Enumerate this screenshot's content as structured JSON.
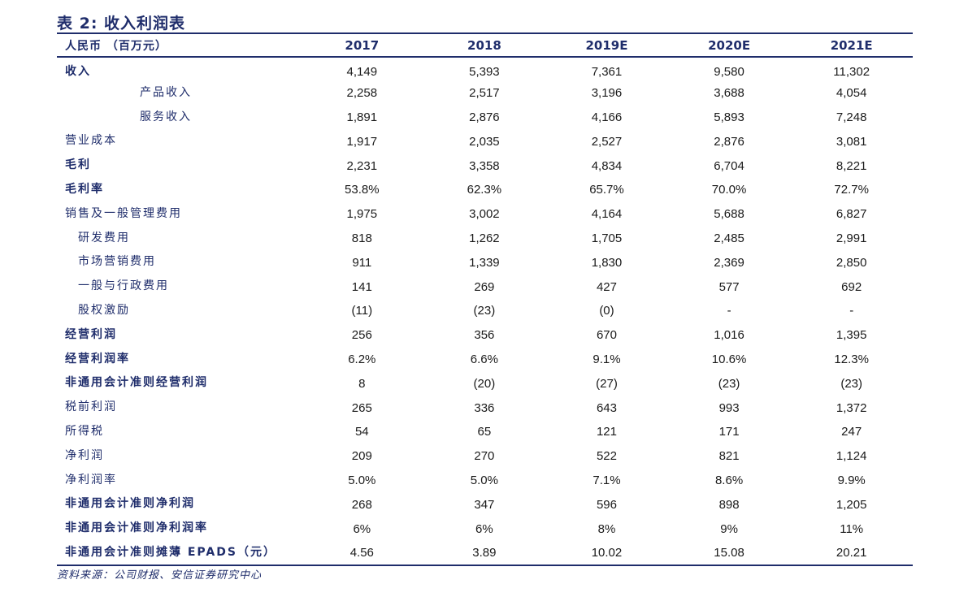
{
  "title": "表 2:  收入利润表",
  "header": {
    "label": "人民币 （百万元）",
    "years": [
      "2017",
      "2018",
      "2019E",
      "2020E",
      "2021E"
    ]
  },
  "rows": [
    {
      "label": "收入",
      "style": "bold",
      "values": [
        "4,149",
        "5,393",
        "7,361",
        "9,580",
        "11,302"
      ]
    },
    {
      "label": "产品收入",
      "style": "indent2",
      "values": [
        "2,258",
        "2,517",
        "3,196",
        "3,688",
        "4,054"
      ]
    },
    {
      "label": "服务收入",
      "style": "indent2",
      "values": [
        "1,891",
        "2,876",
        "4,166",
        "5,893",
        "7,248"
      ]
    },
    {
      "label": "营业成本",
      "style": "normal",
      "values": [
        "1,917",
        "2,035",
        "2,527",
        "2,876",
        "3,081"
      ]
    },
    {
      "label": "毛利",
      "style": "bold",
      "values": [
        "2,231",
        "3,358",
        "4,834",
        "6,704",
        "8,221"
      ]
    },
    {
      "label": "毛利率",
      "style": "bold",
      "values": [
        "53.8%",
        "62.3%",
        "65.7%",
        "70.0%",
        "72.7%"
      ]
    },
    {
      "label": "销售及一般管理费用",
      "style": "normal",
      "values": [
        "1,975",
        "3,002",
        "4,164",
        "5,688",
        "6,827"
      ]
    },
    {
      "label": "研发费用",
      "style": "indent1",
      "values": [
        "818",
        "1,262",
        "1,705",
        "2,485",
        "2,991"
      ]
    },
    {
      "label": "市场营销费用",
      "style": "indent1",
      "values": [
        "911",
        "1,339",
        "1,830",
        "2,369",
        "2,850"
      ]
    },
    {
      "label": "一般与行政费用",
      "style": "indent1",
      "values": [
        "141",
        "269",
        "427",
        "577",
        "692"
      ]
    },
    {
      "label": "股权激励",
      "style": "indent1",
      "values": [
        "(11)",
        "(23)",
        "(0)",
        "-",
        "-"
      ]
    },
    {
      "label": "经营利润",
      "style": "bold",
      "values": [
        "256",
        "356",
        "670",
        "1,016",
        "1,395"
      ]
    },
    {
      "label": "经营利润率",
      "style": "bold",
      "values": [
        "6.2%",
        "6.6%",
        "9.1%",
        "10.6%",
        "12.3%"
      ]
    },
    {
      "label": "非通用会计准则经营利润",
      "style": "bold",
      "values": [
        "8",
        "(20)",
        "(27)",
        "(23)",
        "(23)"
      ]
    },
    {
      "label": "税前利润",
      "style": "normal",
      "values": [
        "265",
        "336",
        "643",
        "993",
        "1,372"
      ]
    },
    {
      "label": "所得税",
      "style": "normal",
      "values": [
        "54",
        "65",
        "121",
        "171",
        "247"
      ]
    },
    {
      "label": "净利润",
      "style": "normal",
      "values": [
        "209",
        "270",
        "522",
        "821",
        "1,124"
      ]
    },
    {
      "label": "净利润率",
      "style": "normal",
      "values": [
        "5.0%",
        "5.0%",
        "7.1%",
        "8.6%",
        "9.9%"
      ]
    },
    {
      "label": "非通用会计准则净利润",
      "style": "bold",
      "values": [
        "268",
        "347",
        "596",
        "898",
        "1,205"
      ]
    },
    {
      "label": "非通用会计准则净利润率",
      "style": "bold",
      "values": [
        "6%",
        "6%",
        "8%",
        "9%",
        "11%"
      ]
    },
    {
      "label": "非通用会计准则摊薄 EPADS（元）",
      "style": "bold",
      "values": [
        "4.56",
        "3.89",
        "10.02",
        "15.08",
        "20.21"
      ]
    }
  ],
  "source": "资料来源：公司财报、安信证券研究中心",
  "colors": {
    "accent": "#1f2d6b",
    "text": "#1a1a1a"
  }
}
